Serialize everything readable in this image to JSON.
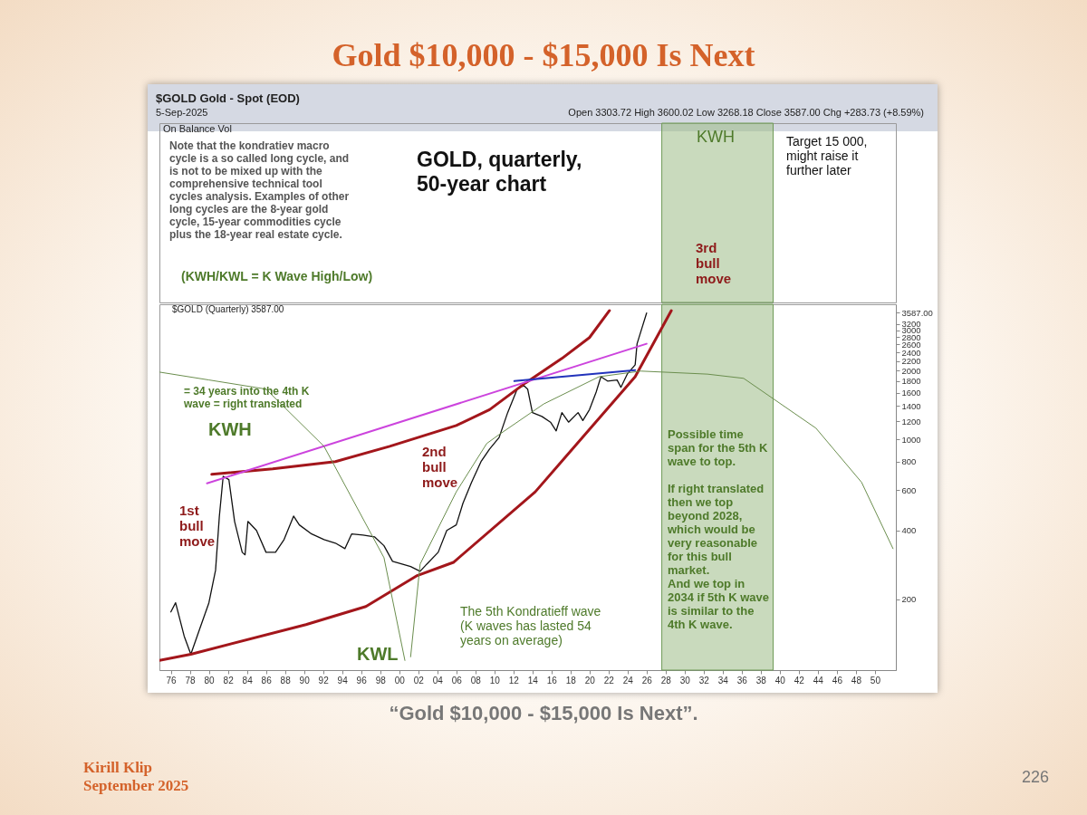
{
  "chart_data": {
    "type": "line",
    "title": "Gold $10,000 - $15,000 Is Next",
    "xlim": [
      1974.8,
      2052.2
    ],
    "ylim": [
      98,
      3900
    ],
    "log": "y",
    "grid": false,
    "xticks": [
      {
        "value": 1976,
        "label": "76"
      },
      {
        "value": 1978,
        "label": "78"
      },
      {
        "value": 1980,
        "label": "80"
      },
      {
        "value": 1982,
        "label": "82"
      },
      {
        "value": 1984,
        "label": "84"
      },
      {
        "value": 1986,
        "label": "86"
      },
      {
        "value": 1988,
        "label": "88"
      },
      {
        "value": 1990,
        "label": "90"
      },
      {
        "value": 1992,
        "label": "92"
      },
      {
        "value": 1994,
        "label": "94"
      },
      {
        "value": 1996,
        "label": "96"
      },
      {
        "value": 1998,
        "label": "98"
      },
      {
        "value": 2000,
        "label": "00"
      },
      {
        "value": 2002,
        "label": "02"
      },
      {
        "value": 2004,
        "label": "04"
      },
      {
        "value": 2006,
        "label": "06"
      },
      {
        "value": 2008,
        "label": "08"
      },
      {
        "value": 2010,
        "label": "10"
      },
      {
        "value": 2012,
        "label": "12"
      },
      {
        "value": 2014,
        "label": "14"
      },
      {
        "value": 2016,
        "label": "16"
      },
      {
        "value": 2018,
        "label": "18"
      },
      {
        "value": 2020,
        "label": "20"
      },
      {
        "value": 2022,
        "label": "22"
      },
      {
        "value": 2024,
        "label": "24"
      },
      {
        "value": 2026,
        "label": "26"
      },
      {
        "value": 2028,
        "label": "28"
      },
      {
        "value": 2030,
        "label": "30"
      },
      {
        "value": 2032,
        "label": "32"
      },
      {
        "value": 2034,
        "label": "34"
      },
      {
        "value": 2036,
        "label": "36"
      },
      {
        "value": 2038,
        "label": "38"
      },
      {
        "value": 2040,
        "label": "40"
      },
      {
        "value": 2042,
        "label": "42"
      },
      {
        "value": 2044,
        "label": "44"
      },
      {
        "value": 2046,
        "label": "46"
      },
      {
        "value": 2048,
        "label": "48"
      },
      {
        "value": 2050,
        "label": "50"
      }
    ],
    "yticks": [
      200,
      400,
      600,
      800,
      1000,
      1200,
      1400,
      1600,
      1800,
      2000,
      2200,
      2400,
      2600,
      2800,
      3000,
      3200,
      {
        "value": 3587,
        "label": "3587.00"
      }
    ],
    "bands": [
      {
        "axis": "x",
        "from": 2027.6,
        "to": 2039.3,
        "color": "#9dbb86"
      }
    ],
    "series": [
      {
        "color": "#111111",
        "x": [
          1976.0,
          1976.5,
          1977.4,
          1978.1,
          1979.0,
          1980.0,
          1980.7,
          1981.1,
          1981.5,
          1982.1,
          1982.7,
          1983.5,
          1983.8,
          1984.1,
          1985.0,
          1986.0,
          1987.0,
          1987.9,
          1988.9,
          1989.5,
          1990.8,
          1992.1,
          1993.3,
          1994.3,
          1995.0,
          1996.2,
          1997.4,
          1998.4,
          1999.3,
          2000.3,
          2001.2,
          2002.2,
          2002.9,
          2004.1,
          2005.0,
          2006.0,
          2006.7,
          2007.6,
          2008.6,
          2009.5,
          2010.5,
          2011.4,
          2012.4,
          2013.1,
          2013.5,
          2014.0,
          2015.0,
          2015.9,
          2016.5,
          2017.1,
          2017.8,
          2018.8,
          2019.3,
          2020.0,
          2020.7,
          2021.2,
          2021.9,
          2022.9,
          2023.3,
          2024.0,
          2024.8,
          2025.0,
          2025.5,
          2026.0
        ],
        "values": [
          176,
          193,
          138,
          115,
          147,
          193,
          268,
          462,
          690,
          667,
          438,
          321,
          313,
          438,
          400,
          321,
          321,
          365,
          462,
          423,
          386,
          365,
          352,
          333,
          386,
          382,
          375,
          343,
          293,
          285,
          278,
          265,
          285,
          321,
          400,
          423,
          526,
          649,
          800,
          908,
          1020,
          1310,
          1660,
          1720,
          1660,
          1310,
          1260,
          1190,
          1090,
          1310,
          1190,
          1310,
          1210,
          1350,
          1610,
          1880,
          1800,
          1820,
          1690,
          1940,
          2120,
          2620,
          3060,
          3570
        ]
      },
      {
        "color": "#a3161b",
        "x": [
          1980.3,
          1986.7,
          1993.3,
          1999.0,
          2006.0,
          2009.5,
          2013.3,
          2017.1,
          2020.0,
          2022.1
        ],
        "values": [
          704,
          743,
          800,
          933,
          1150,
          1350,
          1770,
          2260,
          2790,
          3660
        ]
      },
      {
        "color": "#a3161b",
        "x": [
          1974.8,
          1978.1,
          1990.2,
          1996.5,
          2001.9,
          2005.7,
          2014.3,
          2024.8,
          2028.6
        ],
        "values": [
          108,
          115,
          155,
          186,
          254,
          290,
          590,
          1880,
          3660
        ]
      },
      {
        "color": "#cc44dd",
        "x": [
          1979.8,
          2026.0
        ],
        "values": [
          643,
          2620
        ]
      },
      {
        "color": "#2233bb",
        "x": [
          2012.1,
          2024.8
        ],
        "values": [
          1800,
          2010
        ]
      },
      {
        "color": "#6b8e4e",
        "x": [
          1974.8,
          1980.0,
          1986.0,
          1992.1,
          1998.4,
          2000.6
        ],
        "values": [
          1970,
          1820,
          1660,
          933,
          304,
          108
        ]
      },
      {
        "color": "#6b8e4e",
        "x": [
          2001.2,
          2002.2,
          2006.0,
          2009.2,
          2010.5,
          2015.2,
          2021.0,
          2025.4,
          2032.4,
          2036.2,
          2043.8,
          2048.6,
          2051.9
        ],
        "values": [
          112,
          285,
          590,
          960,
          1050,
          1430,
          1880,
          1990,
          1930,
          1850,
          1120,
          649,
          333
        ]
      }
    ],
    "annotations": [
      "$GOLD Gold - Spot (EOD)",
      "5-Sep-2025",
      "Open 3303.72 High 3600.02 Low 3268.18 Close 3587.00 Chg +283.73 (+8.59%)",
      "On Balance Vol",
      "$GOLD (Quarterly) 3587.00",
      "Note that the kondratiev macro\ncycle is a so called long cycle, and\nis not to be mixed up with the\ncomprehensive technical tool\ncycles analysis. Examples of other\nlong cycles are the 8-year gold\ncycle, 15-year commodities cycle\nplus the 18-year real estate cycle.",
      "GOLD, quarterly,\n50-year chart",
      "(KWH/KWL = K Wave High/Low)",
      "Target 15 000,\nmight raise it\nfurther later",
      "3rd\nbull\nmove",
      "= 34 years into the 4th K\nwave = right translated",
      "KWH",
      "1st\nbull\nmove",
      "2nd\nbull\nmove",
      "KWL",
      "The 5th Kondratieff wave\n(K waves has lasted 54\nyears on average)",
      "Possible time\nspan for the 5th K\nwave to top.\n\nIf right translated\nthen we top\nbeyond 2028,\nwhich would be\nvery reasonable\nfor this bull\nmarket.\nAnd we top in\n2034 if 5th K wave\nis similar to the\n4th K wave.",
      "“Gold $10,000 - $15,000 Is Next”.",
      "Kirill Klip\nSeptember 2025",
      "226",
      "KWH"
    ]
  }
}
